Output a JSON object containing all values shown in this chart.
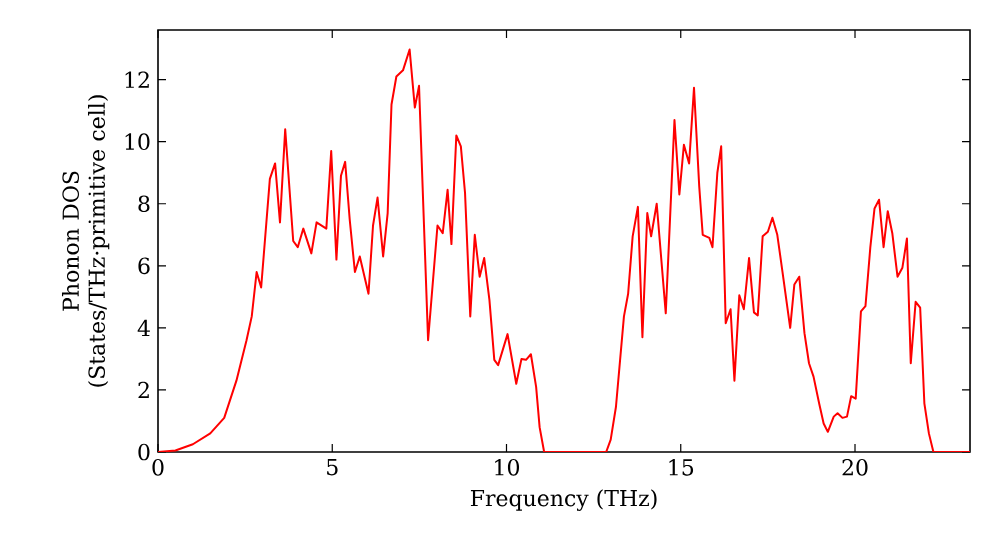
{
  "chart_data": {
    "type": "line",
    "xlabel": "Frequency (THz)",
    "ylabel": "Phonon DOS (States/THz·primitive cell)",
    "xlim": [
      0,
      23.3
    ],
    "ylim": [
      0,
      13.6
    ],
    "xticks": [
      0,
      5,
      10,
      15,
      20
    ],
    "yticks": [
      0,
      2,
      4,
      6,
      8,
      10,
      12
    ],
    "grid": false,
    "marker": "none",
    "line_style": "solid",
    "series": [
      {
        "color": "#ff0000",
        "x": [
          0,
          0.5,
          1,
          1.5,
          1.9,
          2.25,
          2.54,
          2.69,
          2.83,
          2.96,
          3.21,
          3.36,
          3.5,
          3.65,
          3.88,
          4.01,
          4.17,
          4.4,
          4.55,
          4.83,
          4.97,
          5.12,
          5.25,
          5.37,
          5.5,
          5.65,
          5.79,
          6.04,
          6.17,
          6.3,
          6.46,
          6.59,
          6.7,
          6.84,
          7.03,
          7.22,
          7.37,
          7.49,
          7.75,
          8.02,
          8.17,
          8.31,
          8.42,
          8.56,
          8.69,
          8.81,
          8.96,
          9.09,
          9.23,
          9.36,
          9.51,
          9.65,
          9.76,
          10.03,
          10.28,
          10.43,
          10.56,
          10.7,
          10.85,
          10.95,
          11.08,
          12.86,
          12.99,
          13.14,
          13.37,
          13.49,
          13.62,
          13.77,
          13.9,
          14.04,
          14.15,
          14.31,
          14.57,
          14.82,
          14.96,
          15.09,
          15.24,
          15.38,
          15.53,
          15.63,
          15.82,
          15.91,
          16.05,
          16.16,
          16.29,
          16.43,
          16.54,
          16.68,
          16.81,
          16.96,
          17.1,
          17.21,
          17.35,
          17.5,
          17.63,
          17.77,
          17.92,
          18.14,
          18.26,
          18.4,
          18.55,
          18.68,
          18.81,
          18.97,
          19.1,
          19.22,
          19.39,
          19.5,
          19.64,
          19.77,
          19.89,
          20.02,
          20.17,
          20.3,
          20.44,
          20.56,
          20.69,
          20.82,
          20.94,
          21.07,
          21.22,
          21.36,
          21.49,
          21.6,
          21.74,
          21.87,
          21.99,
          22.12,
          22.25,
          23.3
        ],
        "values": [
          0,
          0.05,
          0.25,
          0.6,
          1.1,
          2.3,
          3.6,
          4.37,
          5.8,
          5.3,
          8.8,
          9.3,
          7.4,
          10.4,
          6.8,
          6.6,
          7.2,
          6.4,
          7.4,
          7.2,
          9.7,
          6.2,
          8.9,
          9.35,
          7.5,
          5.8,
          6.3,
          5.1,
          7.3,
          8.2,
          6.3,
          7.7,
          11.2,
          12.1,
          12.3,
          12.97,
          11.1,
          11.8,
          3.6,
          7.3,
          7.05,
          8.45,
          6.7,
          10.2,
          9.85,
          8.35,
          4.37,
          7.0,
          5.65,
          6.25,
          4.9,
          2.97,
          2.8,
          3.8,
          2.2,
          3.0,
          2.97,
          3.15,
          2.1,
          0.8,
          0,
          0,
          0.4,
          1.45,
          4.37,
          5.1,
          6.95,
          7.9,
          3.7,
          7.7,
          6.95,
          8.0,
          4.47,
          10.7,
          8.3,
          9.9,
          9.3,
          11.74,
          8.56,
          7.0,
          6.9,
          6.6,
          9.0,
          9.85,
          4.15,
          4.6,
          2.3,
          5.05,
          4.6,
          6.25,
          4.5,
          4.4,
          6.95,
          7.1,
          7.55,
          7.0,
          5.8,
          4.0,
          5.4,
          5.65,
          3.83,
          2.86,
          2.43,
          1.57,
          0.92,
          0.65,
          1.14,
          1.25,
          1.1,
          1.14,
          1.8,
          1.72,
          4.53,
          4.7,
          6.6,
          7.85,
          8.13,
          6.6,
          7.76,
          7.05,
          5.65,
          5.94,
          6.88,
          2.86,
          4.84,
          4.65,
          1.57,
          0.6,
          0,
          0
        ]
      }
    ]
  }
}
